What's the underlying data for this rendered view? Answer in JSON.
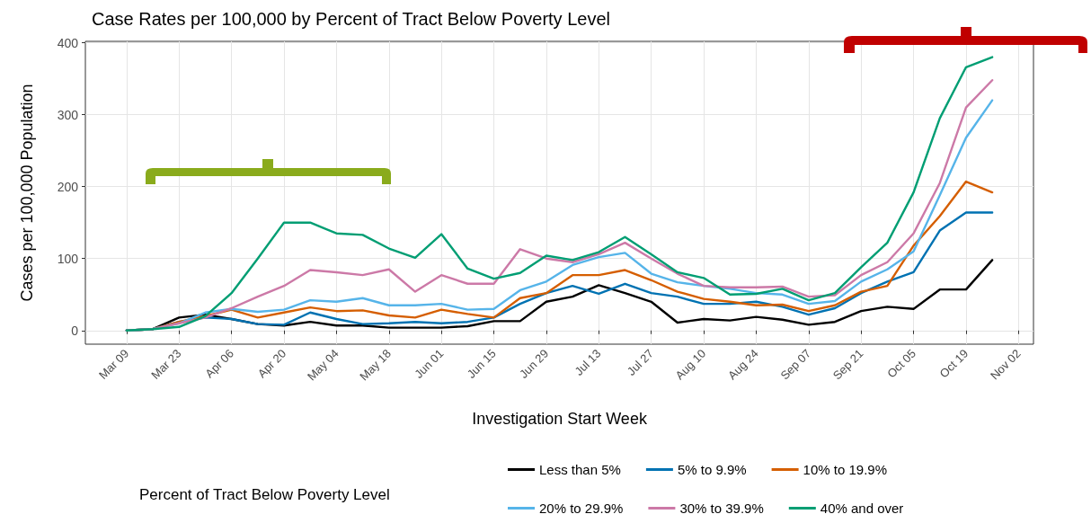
{
  "chart_data": {
    "type": "line",
    "title": "Case Rates per 100,000 by Percent of Tract Below Poverty Level",
    "xlabel": "Investigation Start Week",
    "ylabel": "Cases per 100,000 Population",
    "legend_title": "Percent of Tract Below Poverty Level",
    "x": [
      "--03-09",
      "--03-16",
      "--03-23",
      "--03-30",
      "--04-06",
      "--04-13",
      "--04-20",
      "--04-27",
      "--05-04",
      "--05-11",
      "--05-18",
      "--05-25",
      "--06-01",
      "--06-08",
      "--06-15",
      "--06-22",
      "--06-29",
      "--07-06",
      "--07-13",
      "--07-20",
      "--07-27",
      "--08-03",
      "--08-10",
      "--08-17",
      "--08-24",
      "--08-31",
      "--09-07",
      "--09-14",
      "--09-21",
      "--09-28",
      "--10-05",
      "--10-12",
      "--10-19",
      "--10-26"
    ],
    "series": [
      {
        "name": "Less than 5%",
        "color": "#000000",
        "values": [
          0,
          2,
          18,
          22,
          16,
          9,
          7,
          12,
          7,
          7,
          4,
          4,
          4,
          6,
          13,
          13,
          40,
          47,
          63,
          52,
          40,
          11,
          16,
          14,
          19,
          15,
          8,
          12,
          27,
          33,
          30,
          57,
          57,
          98
        ]
      },
      {
        "name": "5% to 9.9%",
        "color": "#0072b2",
        "values": [
          0,
          2,
          12,
          18,
          16,
          9,
          8,
          25,
          16,
          9,
          10,
          12,
          10,
          12,
          18,
          37,
          52,
          62,
          51,
          65,
          52,
          47,
          37,
          37,
          40,
          33,
          22,
          31,
          52,
          68,
          81,
          139,
          164,
          164
        ]
      },
      {
        "name": "10% to 19.9%",
        "color": "#d55e00",
        "values": [
          0,
          2,
          12,
          20,
          29,
          18,
          25,
          32,
          27,
          28,
          21,
          18,
          29,
          23,
          18,
          45,
          52,
          77,
          77,
          84,
          70,
          54,
          44,
          40,
          35,
          36,
          27,
          35,
          54,
          62,
          118,
          159,
          207,
          192
        ]
      },
      {
        "name": "20% to 29.9%",
        "color": "#56b4e9",
        "values": [
          0,
          2,
          10,
          25,
          30,
          26,
          29,
          42,
          40,
          45,
          35,
          35,
          37,
          29,
          30,
          56,
          68,
          91,
          102,
          108,
          79,
          67,
          62,
          58,
          52,
          50,
          37,
          41,
          68,
          85,
          110,
          188,
          268,
          320
        ]
      },
      {
        "name": "30% to 39.9%",
        "color": "#cc79a7",
        "values": [
          0,
          2,
          10,
          18,
          31,
          47,
          62,
          84,
          81,
          77,
          85,
          54,
          77,
          65,
          65,
          113,
          100,
          95,
          106,
          122,
          100,
          79,
          62,
          60,
          60,
          61,
          47,
          49,
          77,
          95,
          135,
          205,
          310,
          348
        ]
      },
      {
        "name": "40% and over",
        "color": "#009e73",
        "values": [
          0,
          2,
          5,
          20,
          52,
          100,
          150,
          150,
          135,
          133,
          114,
          101,
          134,
          86,
          72,
          80,
          104,
          98,
          109,
          130,
          106,
          81,
          73,
          50,
          51,
          58,
          42,
          52,
          88,
          122,
          192,
          295,
          366,
          380
        ]
      }
    ],
    "xlim": [
      "--02-27",
      "--11-06"
    ],
    "xticks": [
      {
        "value": "--03-09",
        "label": "Mar 09"
      },
      {
        "value": "--03-23",
        "label": "Mar 23"
      },
      {
        "value": "--04-06",
        "label": "Apr 06"
      },
      {
        "value": "--04-20",
        "label": "Apr 20"
      },
      {
        "value": "--05-04",
        "label": "May 04"
      },
      {
        "value": "--05-18",
        "label": "May 18"
      },
      {
        "value": "--06-01",
        "label": "Jun 01"
      },
      {
        "value": "--06-15",
        "label": "Jun 15"
      },
      {
        "value": "--06-29",
        "label": "Jun 29"
      },
      {
        "value": "--07-13",
        "label": "Jul 13"
      },
      {
        "value": "--07-27",
        "label": "Jul 27"
      },
      {
        "value": "--08-10",
        "label": "Aug 10"
      },
      {
        "value": "--08-24",
        "label": "Aug 24"
      },
      {
        "value": "--09-07",
        "label": "Sep 07"
      },
      {
        "value": "--09-21",
        "label": "Sep 21"
      },
      {
        "value": "--10-05",
        "label": "Oct 05"
      },
      {
        "value": "--10-19",
        "label": "Oct 19"
      },
      {
        "value": "--11-02",
        "label": "Nov 02"
      }
    ],
    "ylim": [
      -19,
      402
    ],
    "yticks": [
      0,
      100,
      200,
      300,
      400
    ],
    "grid": true,
    "legend": "bottom",
    "marker": "none",
    "line_style": "solid"
  }
}
